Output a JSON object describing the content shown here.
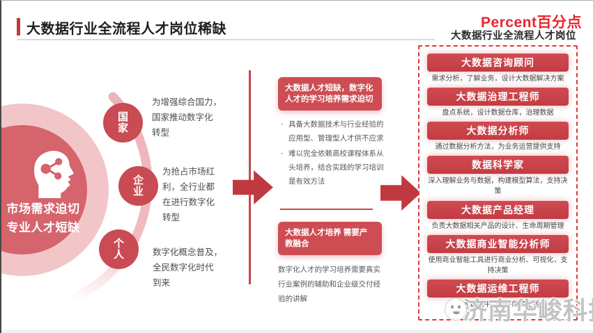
{
  "header": {
    "title": "大数据行业全流程人才岗位稀缺",
    "logo": "Percent百分点",
    "panel_subtitle": "大数据行业全流程人才岗位"
  },
  "left_graphic": {
    "headline_lines": [
      "市场需求迫切",
      "专业人才短缺"
    ],
    "head_icon": "head-silhouette-with-share-network-icon",
    "drivers": [
      {
        "label": "国家",
        "desc_lines": [
          "为增强综合国力，",
          "国家推动数字化",
          "转型"
        ]
      },
      {
        "label": "企业",
        "desc_lines": [
          "为抢占市场红",
          "利，全行业都",
          "在进行数字化",
          "转型"
        ]
      },
      {
        "label": "个人",
        "desc_lines": [
          "数字化概念普及，",
          "全民数字化时代",
          "到来"
        ]
      }
    ]
  },
  "middle": {
    "need": {
      "heading": "大数据人才短缺，数字化人才的学习培养需求迫切",
      "bullets": [
        "具备大数据技术与行业经验的应用型、管理型人才供不应求",
        "难以完全依赖高校课程体系从头培养，结合实践的学习培训是有效方法"
      ]
    },
    "integration": {
      "heading": "大数据人才培养 需要产教融合",
      "desc": "数字化人才的学习培养需要真实行业案例的辅助和企业级交付经验的讲解"
    }
  },
  "jobs_panel": {
    "items": [
      {
        "title": "大数据咨询顾问",
        "desc": "需求分析，了解业务，设计大数据解决方案"
      },
      {
        "title": "大数据治理工程师",
        "desc": "盘点系统，设计数据仓库，治理数据"
      },
      {
        "title": "大数据分析师",
        "desc": "通过数据分析方法，为业务运营提供支持"
      },
      {
        "title": "数据科学家",
        "desc": "深入理解业务与数据，构建模型算法，支持决策"
      },
      {
        "title": "大数据产品经理",
        "desc": "负责大数据相关产品的设计、生命周期管理"
      },
      {
        "title": "大数据商业智能分析师",
        "desc": "使用商业智能工具进行商业分析、可视化，支持决策"
      },
      {
        "title": "大数据运维工程师",
        "desc": "维护大数据平台组件的稳定运行"
      }
    ]
  },
  "watermark": {
    "text": "济南华峻科技"
  },
  "colors": {
    "accent_red": "#bf3a3f",
    "box_red": "#ce4d53",
    "button_red": "#c9434a",
    "logo_red": "#e8262d",
    "light_pink": "#f2c6c9",
    "dashed_border": "#e0373e"
  }
}
